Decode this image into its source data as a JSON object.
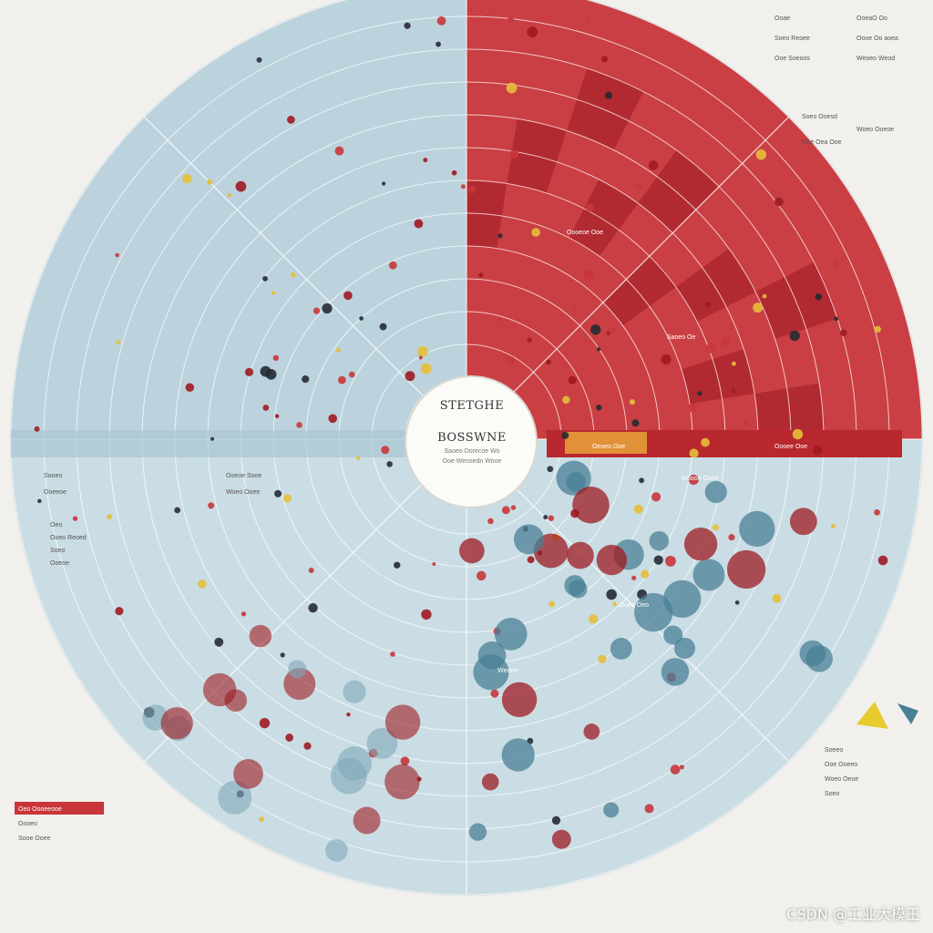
{
  "title_lines": [
    "STETGHE",
    "BOSSWNE"
  ],
  "subtitle_lines": [
    "Saoeo Dorecoe Wo",
    "Ooe Weosedn Wooe"
  ],
  "watermark": "CSDN @工业大模王",
  "colors": {
    "red": "#c8363a",
    "darkred": "#9e1a22",
    "blue": "#7fa9bb",
    "darkblue": "#4a7f95",
    "navy": "#262a33",
    "bg": "#f1f0ec",
    "pale": "#d7e6ec"
  },
  "chart_data": {
    "type": "radial-sector",
    "title": "STETGHE BOSSWNE",
    "rings": 12,
    "ring_range": [
      0,
      12
    ],
    "spokes": 8,
    "sectors": [
      {
        "name": "red",
        "start_deg": -90,
        "end_deg": 0,
        "extent": 12
      },
      {
        "name": "blue-left",
        "start_deg": 180,
        "end_deg": 270,
        "extent": 12
      },
      {
        "name": "blue-bottom",
        "start_deg": 0,
        "end_deg": 180,
        "extent": 12
      }
    ],
    "points_note": "scattered markers (red, navy, blue) across rings"
  },
  "annotations": {
    "top_right": [
      "Ooae",
      "OoeaO Oo",
      "Soeo Reoee",
      "Oooe Oo aoea",
      "Ooe Soeoos",
      "Weoeo Weod"
    ],
    "right_mid": [
      "Soeo Ooesd",
      "Woeo Ooeoe",
      "Ooe Oea Ooe"
    ],
    "left": [
      "Sooeo",
      "Ooeoe Sooe",
      "Ooeeoe",
      "Woeo Ooee"
    ],
    "left_table": [
      "Oeo",
      "Ooeo Reoed",
      "Soeo",
      "Ooeoe"
    ],
    "bottom_left": [
      "Oeo Oooeeooe",
      "Oooeo",
      "Sooe Ooee"
    ],
    "bottom_right": [
      "Soeeo",
      "Ooe Ooeeo",
      "Woeo Oeoe",
      "Soeo"
    ],
    "red_band": [
      "Oeoeo Ooe",
      "Oooee Ooe"
    ],
    "sector_labels": [
      "Oooeoe Ooe",
      "Saoeo Oe",
      "Woooe Oooe",
      "Ooee Oeo",
      "Weoeo"
    ]
  }
}
